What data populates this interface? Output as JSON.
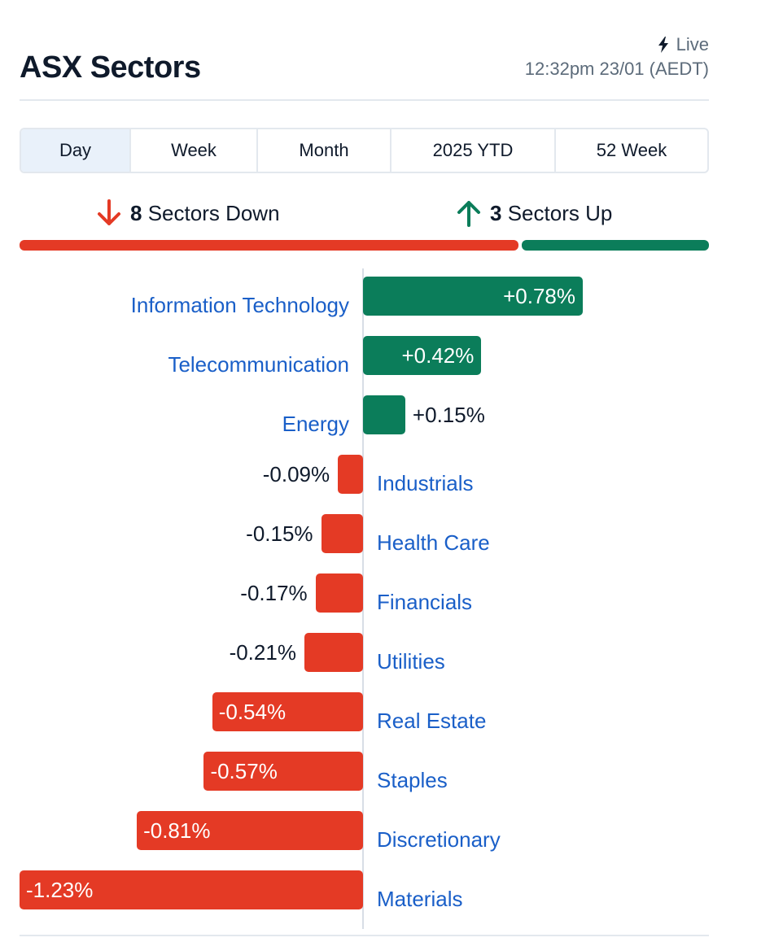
{
  "header": {
    "title": "ASX Sectors",
    "live_label": "Live",
    "timestamp": "12:32pm 23/01 (AEDT)"
  },
  "tabs": [
    {
      "label": "Day",
      "active": true
    },
    {
      "label": "Week",
      "active": false
    },
    {
      "label": "Month",
      "active": false
    },
    {
      "label": "2025 YTD",
      "active": false
    },
    {
      "label": "52 Week",
      "active": false
    }
  ],
  "summary": {
    "down_count": "8",
    "down_label": "Sectors Down",
    "up_count": "3",
    "up_label": "Sectors Up"
  },
  "colors": {
    "positive": "#0b7d5a",
    "negative": "#e43a25",
    "category_text": "#1a5fc8",
    "tab_active_bg": "#e9f1fa"
  },
  "chart_data": {
    "type": "bar",
    "orientation": "horizontal",
    "categories": [
      "Information Technology",
      "Telecommunication",
      "Energy",
      "Industrials",
      "Health Care",
      "Financials",
      "Utilities",
      "Real Estate",
      "Staples",
      "Discretionary",
      "Materials"
    ],
    "values": [
      0.78,
      0.42,
      0.15,
      -0.09,
      -0.15,
      -0.17,
      -0.21,
      -0.54,
      -0.57,
      -0.81,
      -1.23
    ],
    "labels": [
      "+0.78%",
      "+0.42%",
      "+0.15%",
      "-0.09%",
      "-0.15%",
      "-0.17%",
      "-0.21%",
      "-0.54%",
      "-0.57%",
      "-0.81%",
      "-1.23%"
    ],
    "unit": "%",
    "xlim": [
      -1.23,
      0.78
    ]
  }
}
